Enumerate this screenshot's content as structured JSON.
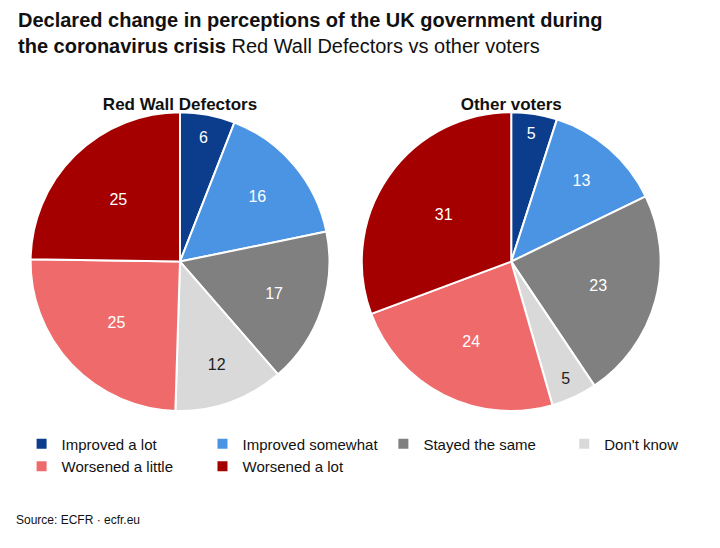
{
  "title": "Declared change in perceptions of the UK government during the coronavirus crisis",
  "subtitle": "Red Wall Defectors vs other voters",
  "source": "Source: ECFR · ecfr.eu",
  "chart_data": [
    {
      "type": "pie",
      "title": "Red Wall Defectors",
      "categories": [
        "Improved a lot",
        "Improved somewhat",
        "Stayed the same",
        "Don't know",
        "Worsened a little",
        "Worsened a lot"
      ],
      "values": [
        6,
        16,
        17,
        12,
        25,
        25
      ],
      "colors": [
        "#0b3d8c",
        "#4a94e3",
        "#808080",
        "#d9d9d9",
        "#ef6b6b",
        "#a50000"
      ],
      "data_labels": true,
      "legend": "bottom"
    },
    {
      "type": "pie",
      "title": "Other voters",
      "categories": [
        "Improved a lot",
        "Improved somewhat",
        "Stayed the same",
        "Don't know",
        "Worsened a little",
        "Worsened a lot"
      ],
      "values": [
        5,
        13,
        23,
        5,
        24,
        31
      ],
      "colors": [
        "#0b3d8c",
        "#4a94e3",
        "#808080",
        "#d9d9d9",
        "#ef6b6b",
        "#a50000"
      ],
      "data_labels": true,
      "legend": "bottom"
    }
  ]
}
